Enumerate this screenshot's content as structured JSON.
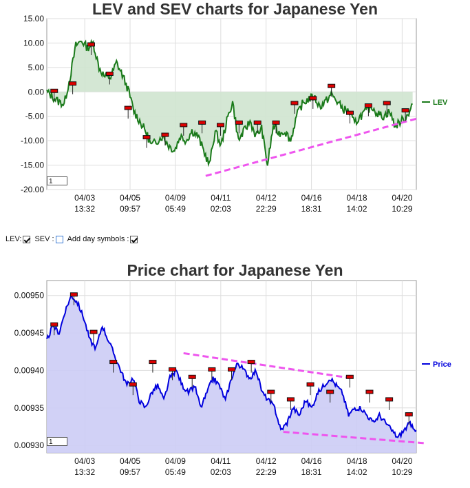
{
  "lev_chart": {
    "title": "LEV and SEV charts for Japanese Yen",
    "zoom_value": "1",
    "legend": "LEV",
    "colors": {
      "line": "#1a7a1a",
      "fill": "#cfe4cf",
      "trend": "#ee55ee",
      "marker": "#dd0000"
    }
  },
  "controls": {
    "lev_label": "LEV:",
    "sev_label": "SEV :",
    "add_day_label": "Add day symbols :",
    "lev_checked": true,
    "sev_checked": false,
    "add_day_checked": true
  },
  "price_chart": {
    "title": "Price chart for Japanese Yen",
    "zoom_value": "1",
    "legend": "Price",
    "colors": {
      "line": "#0000dd",
      "fill": "#ccccf5",
      "trend": "#ee55ee",
      "marker": "#dd0000"
    }
  },
  "chart_data": [
    {
      "type": "line",
      "title": "LEV and SEV charts for Japanese Yen",
      "ylim": [
        -20,
        15
      ],
      "y_ticks": [
        "15.00",
        "10.00",
        "5.00",
        "0.00",
        "-5.00",
        "-10.00",
        "-15.00",
        "-20.00"
      ],
      "x_ticks": [
        {
          "date": "04/03",
          "time": "13:32"
        },
        {
          "date": "04/05",
          "time": "09:57"
        },
        {
          "date": "04/09",
          "time": "05:49"
        },
        {
          "date": "04/11",
          "time": "02:03"
        },
        {
          "date": "04/12",
          "time": "22:29"
        },
        {
          "date": "04/16",
          "time": "18:31"
        },
        {
          "date": "04/18",
          "time": "14:02"
        },
        {
          "date": "04/20",
          "time": "10:29"
        }
      ],
      "grid": true,
      "legend_position": "right",
      "series": [
        {
          "name": "LEV",
          "values": [
            0.0,
            -1.0,
            -2.0,
            -2.5,
            3.0,
            9.5,
            10.5,
            9.0,
            10.0,
            5.0,
            3.0,
            3.0,
            6.0,
            3.5,
            0.5,
            -4.0,
            -6.0,
            -8.0,
            -11.0,
            -10.0,
            -9.0,
            -11.0,
            -12.0,
            -9.0,
            -10.0,
            -8.0,
            -9.0,
            -12.0,
            -15.0,
            -8.0,
            -11.0,
            -6.0,
            -2.0,
            -10.0,
            -8.0,
            -6.0,
            -9.0,
            -7.5,
            -15.0,
            -7.0,
            -8.5,
            -8.0,
            -10.0,
            -5.0,
            -2.5,
            -1.5,
            -1.0,
            -3.0,
            -2.0,
            -0.5,
            -2.0,
            -3.5,
            -4.0,
            -6.5,
            -5.0,
            -4.0,
            -3.0,
            -4.5,
            -5.0,
            -4.0,
            -7.0,
            -6.0,
            -5.0,
            -2.5
          ]
        }
      ],
      "trend_line": {
        "from": [
          0.43,
          -17.2
        ],
        "to": [
          1.0,
          -5.5
        ]
      },
      "day_markers": [
        0.0,
        1.5,
        9.5,
        3.5,
        -3.5,
        -9.5,
        -9.0,
        -7.0,
        -6.5,
        -7.0,
        -6.5,
        -6.5,
        -6.5,
        -2.5,
        -1.5,
        1.0,
        -4.5,
        -3.0,
        -2.5,
        -4.0
      ]
    },
    {
      "type": "area",
      "title": "Price chart for Japanese Yen",
      "ylim": [
        0.00929,
        0.00952
      ],
      "y_ticks": [
        "0.00950",
        "0.00945",
        "0.00940",
        "0.00935",
        "0.00930"
      ],
      "x_ticks": [
        {
          "date": "04/03",
          "time": "13:32"
        },
        {
          "date": "04/05",
          "time": "09:57"
        },
        {
          "date": "04/09",
          "time": "05:49"
        },
        {
          "date": "04/11",
          "time": "02:03"
        },
        {
          "date": "04/12",
          "time": "22:29"
        },
        {
          "date": "04/16",
          "time": "18:31"
        },
        {
          "date": "04/18",
          "time": "14:02"
        },
        {
          "date": "04/20",
          "time": "10:29"
        }
      ],
      "grid": true,
      "legend_position": "right",
      "series": [
        {
          "name": "Price",
          "values": [
            0.00944,
            0.00946,
            0.00945,
            0.00948,
            0.0095,
            0.00949,
            0.00947,
            0.00944,
            0.00943,
            0.00946,
            0.00944,
            0.00942,
            0.0094,
            0.00938,
            0.00939,
            0.00936,
            0.00935,
            0.00937,
            0.00938,
            0.00936,
            0.00939,
            0.0094,
            0.00938,
            0.00937,
            0.00938,
            0.00935,
            0.00937,
            0.00939,
            0.00938,
            0.00936,
            0.00939,
            0.00941,
            0.0094,
            0.00939,
            0.0094,
            0.00937,
            0.00936,
            0.00935,
            0.00932,
            0.00933,
            0.00935,
            0.00934,
            0.00936,
            0.00935,
            0.00937,
            0.00938,
            0.00939,
            0.00938,
            0.00937,
            0.00934,
            0.00935,
            0.00935,
            0.00934,
            0.00933,
            0.00934,
            0.00933,
            0.00932,
            0.00931,
            0.00932,
            0.00933,
            0.00932
          ]
        }
      ],
      "trend_lines": [
        {
          "from": [
            0.37,
            0.009423
          ],
          "to": [
            0.82,
            0.00939
          ]
        },
        {
          "from": [
            0.64,
            0.009318
          ],
          "to": [
            1.02,
            0.009303
          ]
        }
      ],
      "day_markers": [
        0.00946,
        0.0095,
        0.00945,
        0.00941,
        0.00938,
        0.00941,
        0.0094,
        0.00939,
        0.0094,
        0.0094,
        0.00941,
        0.00937,
        0.00936,
        0.00938,
        0.00937,
        0.00939,
        0.00937,
        0.00936,
        0.00934
      ]
    }
  ]
}
